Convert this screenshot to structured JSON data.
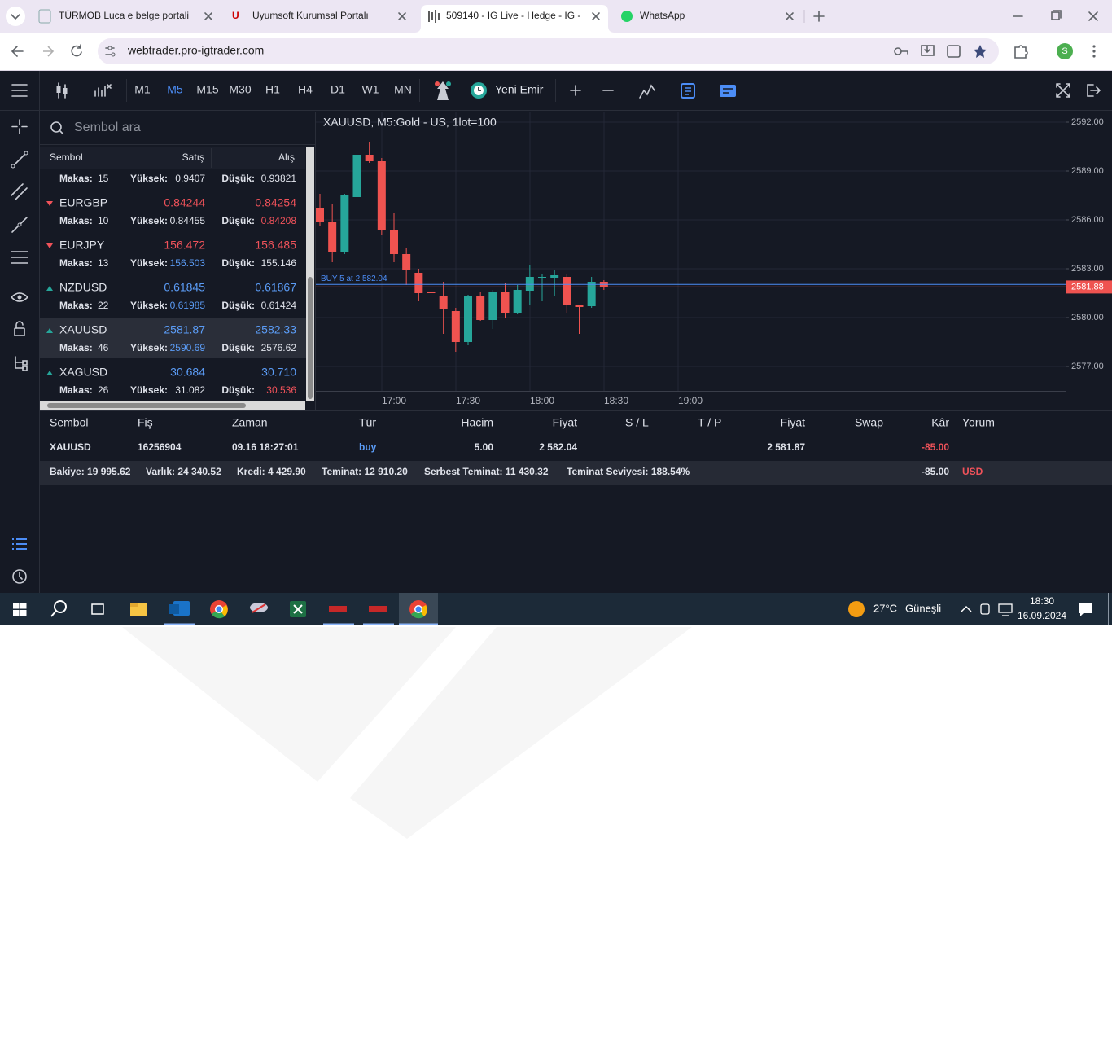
{
  "browser": {
    "tabs": [
      "TÜRMOB Luca e belge portali",
      "Uyumsoft Kurumsal Portalı",
      "509140 - IG Live - Hedge - IG -",
      "WhatsApp"
    ],
    "url": "webtrader.pro-igtrader.com",
    "profile_initial": "S"
  },
  "toolbar": {
    "timeframes": [
      "M1",
      "M5",
      "M15",
      "M30",
      "H1",
      "H4",
      "D1",
      "W1",
      "MN"
    ],
    "new_order": "Yeni Emir"
  },
  "watchlist": {
    "search_placeholder": "Sembol ara",
    "columns": [
      "Sembol",
      "Satış",
      "Alış"
    ],
    "labels": {
      "spread": "Makas:",
      "high": "Yüksek:",
      "low": "Düşük:"
    },
    "rows": [
      {
        "spread": "15",
        "high": "0.9407",
        "low": "0.93821"
      },
      {
        "symbol": "EURGBP",
        "trend": "down",
        "bid": "0.84244",
        "ask": "0.84254",
        "spread": "10",
        "high": "0.84455",
        "low": "0.84208",
        "low_color": "#f0525a"
      },
      {
        "symbol": "EURJPY",
        "trend": "down",
        "bid": "156.472",
        "ask": "156.485",
        "spread": "13",
        "high": "156.503",
        "low": "155.146",
        "high_color": "#5b9cf6"
      },
      {
        "symbol": "NZDUSD",
        "trend": "up",
        "bid": "0.61845",
        "ask": "0.61867",
        "spread": "22",
        "high": "0.61985",
        "low": "0.61424",
        "high_color": "#5b9cf6"
      },
      {
        "symbol": "XAUUSD",
        "trend": "up",
        "bid": "2581.87",
        "ask": "2582.33",
        "spread": "46",
        "high": "2590.69",
        "low": "2576.62",
        "high_color": "#5b9cf6",
        "selected": true
      },
      {
        "symbol": "XAGUSD",
        "trend": "up",
        "bid": "30.684",
        "ask": "30.710",
        "spread": "26",
        "high": "31.082",
        "low": "30.536",
        "low_color": "#f0525a"
      }
    ]
  },
  "chart": {
    "type": "candlestick",
    "title": "XAUUSD, M5:Gold - US, 1lot=100",
    "ylim": [
      2575.5,
      2592.65
    ],
    "yticks": [
      {
        "value": 2577,
        "label": "2577.00"
      },
      {
        "value": 2580,
        "label": "2580.00"
      },
      {
        "value": 2583,
        "label": "2583.00"
      },
      {
        "value": 2586,
        "label": "2586.00"
      },
      {
        "value": 2589,
        "label": "2589.00"
      },
      {
        "value": 2592,
        "label": "2592.00"
      }
    ],
    "xticks": [
      "17:00",
      "17:30",
      "18:00",
      "18:30",
      "19:00"
    ],
    "up_color": "#26a69a",
    "down_color": "#ef5350",
    "grid": true,
    "candles": [
      {
        "open": 2586.7,
        "high": 2587.6,
        "low": 2585.6,
        "close": 2585.9
      },
      {
        "open": 2585.9,
        "high": 2587.0,
        "low": 2583.4,
        "close": 2584.0
      },
      {
        "open": 2584.0,
        "high": 2587.6,
        "low": 2583.9,
        "close": 2587.5
      },
      {
        "open": 2587.4,
        "high": 2590.3,
        "low": 2587.2,
        "close": 2590.0
      },
      {
        "open": 2590.0,
        "high": 2590.8,
        "low": 2589.5,
        "close": 2589.6
      },
      {
        "open": 2589.6,
        "high": 2589.8,
        "low": 2585.1,
        "close": 2585.4
      },
      {
        "open": 2585.4,
        "high": 2586.4,
        "low": 2583.4,
        "close": 2583.9
      },
      {
        "open": 2583.9,
        "high": 2584.3,
        "low": 2582.0,
        "close": 2582.9
      },
      {
        "open": 2582.75,
        "high": 2583.0,
        "low": 2581.0,
        "close": 2581.5
      },
      {
        "open": 2581.6,
        "high": 2582.0,
        "low": 2580.3,
        "close": 2581.5
      },
      {
        "open": 2581.3,
        "high": 2582.2,
        "low": 2579.0,
        "close": 2580.5
      },
      {
        "open": 2580.4,
        "high": 2580.6,
        "low": 2577.9,
        "close": 2578.5
      },
      {
        "open": 2578.5,
        "high": 2581.4,
        "low": 2578.3,
        "close": 2581.3
      },
      {
        "open": 2581.3,
        "high": 2581.6,
        "low": 2579.8,
        "close": 2579.85
      },
      {
        "open": 2579.85,
        "high": 2581.7,
        "low": 2579.3,
        "close": 2581.6
      },
      {
        "open": 2581.6,
        "high": 2582.1,
        "low": 2580.0,
        "close": 2580.3
      },
      {
        "open": 2580.3,
        "high": 2582.0,
        "low": 2580.2,
        "close": 2581.7
      },
      {
        "open": 2581.65,
        "high": 2583.2,
        "low": 2580.8,
        "close": 2582.5
      },
      {
        "open": 2582.45,
        "high": 2582.7,
        "low": 2581.0,
        "close": 2582.5
      },
      {
        "open": 2582.45,
        "high": 2582.9,
        "low": 2581.3,
        "close": 2582.6
      },
      {
        "open": 2582.5,
        "high": 2582.7,
        "low": 2580.3,
        "close": 2580.8
      },
      {
        "open": 2580.75,
        "high": 2580.8,
        "low": 2579.0,
        "close": 2580.65
      },
      {
        "open": 2580.7,
        "high": 2582.5,
        "low": 2580.6,
        "close": 2582.2
      },
      {
        "open": 2582.2,
        "high": 2582.3,
        "low": 2581.7,
        "close": 2581.9
      }
    ],
    "order_label": "BUY 5 at 2 582.04",
    "order_price": 2582.04,
    "current_price": 2581.88
  },
  "positions": {
    "columns": [
      "Sembol",
      "Fiş",
      "Zaman",
      "Tür",
      "Hacim",
      "Fiyat",
      "S / L",
      "T / P",
      "Fiyat",
      "Swap",
      "Kâr",
      "Yorum"
    ],
    "rows": [
      [
        "XAUUSD",
        "16256904",
        "09.16 18:27:01",
        "buy",
        "5.00",
        "2 582.04",
        null,
        null,
        "2 581.87",
        null,
        "-85.00",
        null
      ]
    ],
    "summary": {
      "items": [
        "Bakiye: 19 995.62",
        "Varlık: 24 340.52",
        "Kredi: 4 429.90",
        "Teminat: 12 910.20",
        "Serbest Teminat: 11 430.32",
        "Teminat Seviyesi: 188.54%"
      ],
      "total": "-85.00",
      "currency": "USD"
    }
  },
  "taskbar": {
    "temperature": "27°C",
    "weather": "Güneşli",
    "time": "18:30",
    "date": "16.09.2024"
  }
}
